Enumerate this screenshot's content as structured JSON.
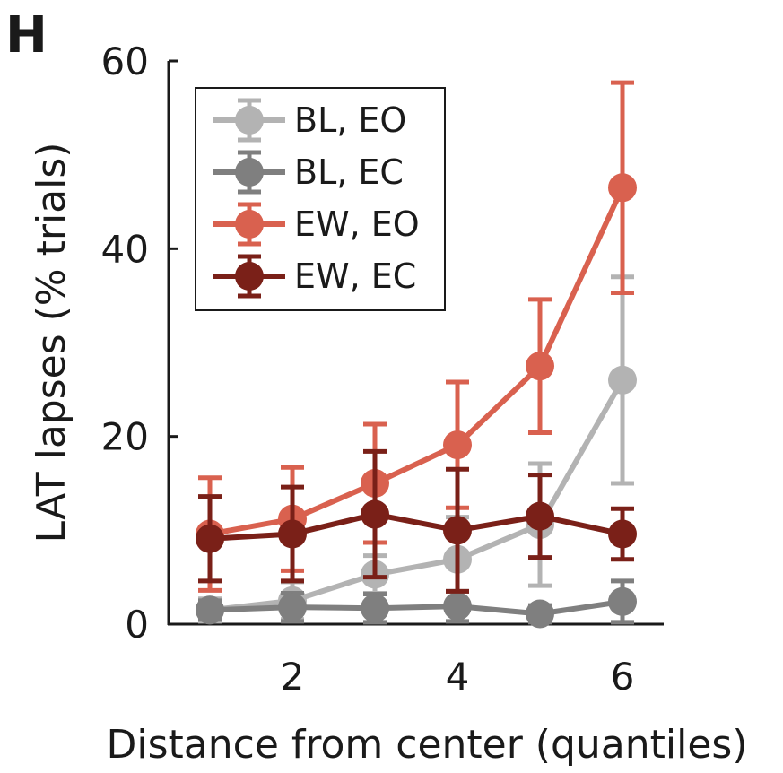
{
  "panel_label": "H",
  "chart_data": {
    "type": "line",
    "xlabel": "Distance from center (quantiles)",
    "ylabel": "LAT lapses (% trials)",
    "xlim": [
      0.5,
      6.5
    ],
    "ylim": [
      0,
      60
    ],
    "xticks": [
      2,
      4,
      6
    ],
    "yticks": [
      0,
      20,
      40,
      60
    ],
    "legend_position": "top-left",
    "x": [
      1,
      2,
      3,
      4,
      5,
      6
    ],
    "series": [
      {
        "name": "BL, EO",
        "color": "#b3b3b3",
        "values": [
          1.5,
          2.5,
          5.3,
          6.9,
          10.6,
          26.0
        ],
        "err": [
          1.2,
          2.0,
          2.0,
          4.5,
          6.5,
          11.0
        ]
      },
      {
        "name": "BL, EC",
        "color": "#7f7f7f",
        "values": [
          1.5,
          1.8,
          1.7,
          1.9,
          1.1,
          2.4
        ],
        "err": [
          1.0,
          1.5,
          1.5,
          1.6,
          0.9,
          2.2
        ]
      },
      {
        "name": "EW, EO",
        "color": "#d9614f",
        "values": [
          9.6,
          11.2,
          15.0,
          19.1,
          27.5,
          46.5
        ],
        "err": [
          6.0,
          5.5,
          6.3,
          6.7,
          7.1,
          11.2
        ]
      },
      {
        "name": "EW, EC",
        "color": "#7a2018",
        "values": [
          9.1,
          9.6,
          11.7,
          10.0,
          11.5,
          9.6
        ],
        "err": [
          4.5,
          5.0,
          6.7,
          6.5,
          4.4,
          2.7
        ]
      }
    ]
  }
}
